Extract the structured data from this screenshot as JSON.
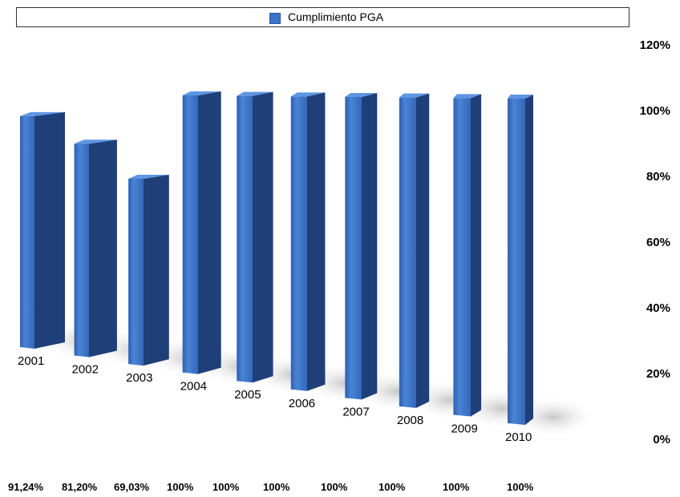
{
  "chart_data": {
    "type": "bar",
    "title": "",
    "xlabel": "",
    "ylabel": "",
    "ylim": [
      0,
      120
    ],
    "legend": {
      "position": "top",
      "entries": [
        "Cumplimiento PGA"
      ]
    },
    "yticks": [
      "120%",
      "100%",
      "80%",
      "60%",
      "40%",
      "20%",
      "0%"
    ],
    "categories": [
      "2001",
      "2002",
      "2003",
      "2004",
      "2005",
      "2006",
      "2007",
      "2008",
      "2009",
      "2010"
    ],
    "series": [
      {
        "name": "Cumplimiento PGA",
        "color": "#3a73c9",
        "values": [
          91.24,
          81.2,
          69.03,
          100,
          100,
          100,
          100,
          100,
          100,
          100
        ]
      }
    ],
    "value_labels": [
      "91,24%",
      "81,20%",
      "69,03%",
      "100%",
      "100%",
      "100%",
      "100%",
      "100%",
      "100%",
      "100%"
    ]
  }
}
